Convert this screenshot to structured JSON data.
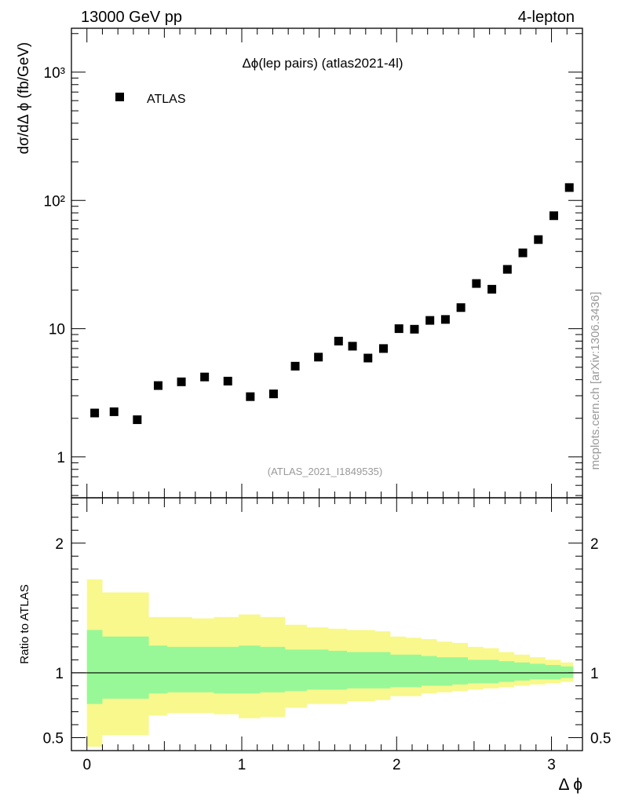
{
  "header": {
    "left": "13000 GeV pp",
    "right": "4-lepton"
  },
  "side_label": "mcplots.cern.ch [arXiv:1306.3436]",
  "chart_data": [
    {
      "type": "scatter",
      "title": "Δϕ(lep pairs) (atlas2021-4l)",
      "ylabel": "dσ/dΔ ϕ (fb/GeV)",
      "xlabel": "",
      "yscale": "log",
      "xlim": [
        -0.1,
        3.2
      ],
      "ylim": [
        0.48,
        2200
      ],
      "y_tick_labels": [
        "1",
        "10",
        "10²"
      ],
      "y_tick_values": [
        1,
        10,
        100
      ],
      "y_tick_top_label": "10³",
      "y_tick_top_value": 1000,
      "legend": [
        {
          "label": "ATLAS",
          "marker": "square",
          "position": "top-left"
        }
      ],
      "watermark": "(ATLAS_2021_I1849535)",
      "series": [
        {
          "name": "ATLAS",
          "x": [
            0.05,
            0.175,
            0.325,
            0.46,
            0.61,
            0.76,
            0.91,
            1.055,
            1.205,
            1.345,
            1.495,
            1.625,
            1.715,
            1.815,
            1.915,
            2.015,
            2.115,
            2.215,
            2.315,
            2.415,
            2.515,
            2.615,
            2.715,
            2.815,
            2.915,
            3.015,
            3.115
          ],
          "y": [
            2.2,
            2.25,
            1.95,
            3.6,
            3.85,
            4.2,
            3.9,
            2.95,
            3.1,
            5.1,
            6.0,
            8.0,
            7.3,
            5.9,
            7.0,
            10.0,
            9.9,
            11.6,
            11.8,
            14.6,
            22.5,
            20.3,
            29.0,
            39.0,
            49.5,
            76.0,
            126.0
          ]
        }
      ]
    },
    {
      "type": "area",
      "title": "",
      "ylabel": "Ratio to ATLAS",
      "xlabel": "Δ ϕ",
      "xlim": [
        -0.1,
        3.2
      ],
      "ylim": [
        0.4,
        2.35
      ],
      "x_tick_labels": [
        "0",
        "1",
        "2",
        "3"
      ],
      "x_tick_values": [
        0,
        1,
        2,
        3
      ],
      "y_tick_labels": [
        "0.5",
        "1",
        "2"
      ],
      "y_tick_values": [
        0.5,
        1,
        2
      ],
      "reference_line": 1,
      "bin_edges": [
        0,
        0.1,
        0.25,
        0.4,
        0.52,
        0.68,
        0.82,
        0.98,
        1.12,
        1.28,
        1.42,
        1.56,
        1.68,
        1.76,
        1.86,
        1.96,
        2.06,
        2.16,
        2.26,
        2.36,
        2.46,
        2.56,
        2.66,
        2.76,
        2.86,
        2.96,
        3.06,
        3.14
      ],
      "series": [
        {
          "name": "inner band",
          "color": "#98f898",
          "lower": [
            0.76,
            0.8,
            0.8,
            0.84,
            0.85,
            0.85,
            0.84,
            0.84,
            0.85,
            0.86,
            0.87,
            0.87,
            0.88,
            0.88,
            0.88,
            0.89,
            0.89,
            0.9,
            0.9,
            0.91,
            0.92,
            0.92,
            0.93,
            0.94,
            0.95,
            0.95,
            0.96
          ],
          "upper": [
            1.33,
            1.28,
            1.28,
            1.21,
            1.2,
            1.2,
            1.2,
            1.21,
            1.2,
            1.18,
            1.18,
            1.17,
            1.16,
            1.16,
            1.16,
            1.14,
            1.14,
            1.13,
            1.12,
            1.12,
            1.1,
            1.1,
            1.09,
            1.08,
            1.07,
            1.06,
            1.05
          ]
        },
        {
          "name": "outer band",
          "color": "#f8f88c",
          "lower": [
            0.43,
            0.52,
            0.52,
            0.67,
            0.69,
            0.69,
            0.68,
            0.65,
            0.66,
            0.73,
            0.76,
            0.76,
            0.78,
            0.78,
            0.79,
            0.82,
            0.82,
            0.84,
            0.85,
            0.86,
            0.87,
            0.88,
            0.89,
            0.9,
            0.91,
            0.92,
            0.93
          ],
          "upper": [
            1.72,
            1.62,
            1.62,
            1.43,
            1.43,
            1.42,
            1.43,
            1.45,
            1.43,
            1.37,
            1.35,
            1.34,
            1.33,
            1.33,
            1.32,
            1.28,
            1.27,
            1.26,
            1.24,
            1.23,
            1.2,
            1.19,
            1.16,
            1.14,
            1.12,
            1.1,
            1.08
          ]
        }
      ]
    }
  ]
}
